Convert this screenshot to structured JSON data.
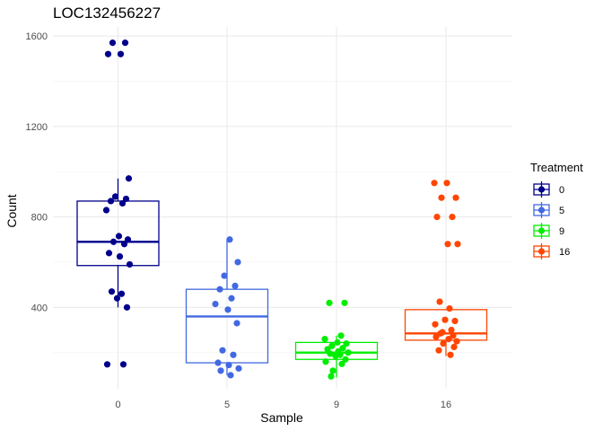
{
  "chart_data": {
    "type": "boxplot",
    "title": "LOC132456227",
    "xlabel": "Sample",
    "ylabel": "Count",
    "ylim": [
      40,
      1640
    ],
    "yticks": [
      400,
      800,
      1200,
      1600
    ],
    "categories": [
      "0",
      "5",
      "9",
      "16"
    ],
    "grid": true,
    "legend": {
      "title": "Treatment",
      "placement": "right",
      "entries": [
        "0",
        "5",
        "9",
        "16"
      ]
    },
    "colors": {
      "0": "#00008b",
      "5": "#4169e1",
      "9": "#00ee00",
      "16": "#ff4500"
    },
    "series": [
      {
        "category": "0",
        "box": {
          "lower_whisker": 400,
          "q1": 585,
          "median": 690,
          "q3": 870,
          "upper_whisker": 970
        },
        "points": [
          1570,
          1570,
          1520,
          1520,
          970,
          890,
          880,
          870,
          860,
          830,
          715,
          700,
          690,
          680,
          640,
          625,
          590,
          470,
          460,
          440,
          400,
          148,
          148
        ]
      },
      {
        "category": "5",
        "box": {
          "lower_whisker": 100,
          "q1": 155,
          "median": 360,
          "q3": 480,
          "upper_whisker": 700
        },
        "points": [
          700,
          600,
          540,
          495,
          480,
          440,
          415,
          390,
          330,
          210,
          190,
          155,
          145,
          130,
          120,
          100
        ]
      },
      {
        "category": "9",
        "box": {
          "lower_whisker": 90,
          "q1": 170,
          "median": 200,
          "q3": 245,
          "upper_whisker": 275
        },
        "points": [
          420,
          420,
          275,
          260,
          245,
          240,
          230,
          220,
          215,
          205,
          200,
          195,
          190,
          185,
          170,
          160,
          150,
          120,
          95
        ]
      },
      {
        "category": "16",
        "box": {
          "lower_whisker": 185,
          "q1": 255,
          "median": 285,
          "q3": 390,
          "upper_whisker": 390
        },
        "points": [
          950,
          950,
          885,
          885,
          800,
          800,
          680,
          680,
          425,
          395,
          345,
          340,
          325,
          300,
          290,
          285,
          275,
          270,
          260,
          250,
          240,
          225,
          210,
          190
        ]
      }
    ]
  }
}
